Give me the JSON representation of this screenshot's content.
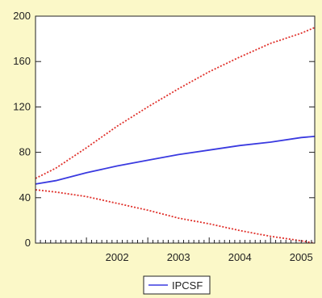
{
  "chart_data": {
    "type": "line",
    "x_start": 2001.17,
    "x_end": 2005.72,
    "x_ticks": [
      2002,
      2003,
      2004,
      2005
    ],
    "ylim": [
      0,
      200
    ],
    "y_ticks": [
      0,
      40,
      80,
      120,
      160,
      200
    ],
    "grid": false,
    "legend_position": "bottom-center",
    "legend": [
      "IPCSF"
    ],
    "series": [
      {
        "name": "IPCSF",
        "style": "solid",
        "color": "#3a3ae0",
        "x": [
          2001.17,
          2001.5,
          2002.0,
          2002.5,
          2003.0,
          2003.5,
          2004.0,
          2004.5,
          2005.0,
          2005.5,
          2005.72
        ],
        "values": [
          52,
          55,
          62,
          68,
          73,
          78,
          82,
          86,
          89,
          93,
          94
        ]
      },
      {
        "style": "dotted",
        "color": "#e0302a",
        "x": [
          2001.17,
          2001.5,
          2002.0,
          2002.5,
          2003.0,
          2003.5,
          2004.0,
          2004.5,
          2005.0,
          2005.5,
          2005.72
        ],
        "values": [
          57,
          66,
          84,
          103,
          120,
          136,
          151,
          164,
          176,
          185,
          190
        ]
      },
      {
        "style": "dotted",
        "color": "#e0302a",
        "x": [
          2001.17,
          2001.5,
          2002.0,
          2002.5,
          2003.0,
          2003.5,
          2004.0,
          2004.5,
          2005.0,
          2005.5,
          2005.72
        ],
        "values": [
          47,
          45,
          41,
          35,
          29,
          22,
          17,
          11,
          6,
          2,
          0
        ]
      }
    ]
  }
}
